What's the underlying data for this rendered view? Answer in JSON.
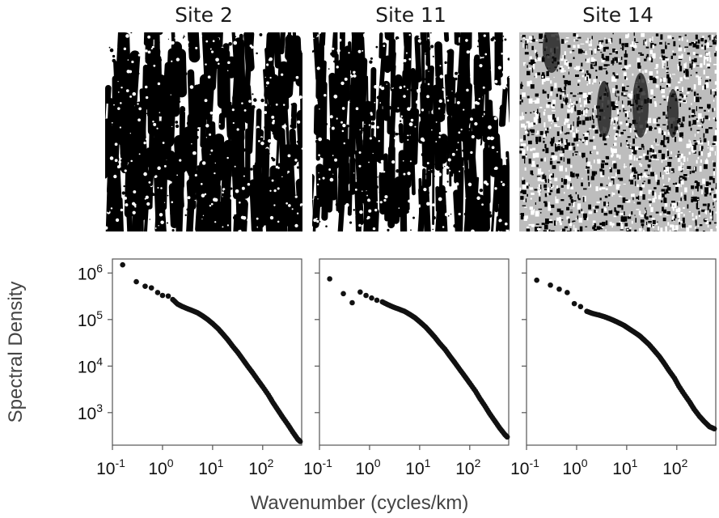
{
  "figure": {
    "xlabel": "Wavenumber (cycles/km)",
    "ylabel": "Spectral Density"
  },
  "panels": [
    {
      "title": "Site 2",
      "texture": "dark-streaks"
    },
    {
      "title": "Site 11",
      "texture": "mixed-streaks"
    },
    {
      "title": "Site 14",
      "texture": "speckled"
    }
  ],
  "chart_data": [
    {
      "type": "scatter",
      "title": "Site 2",
      "xscale": "log",
      "yscale": "log",
      "xlim": [
        0.1,
        600
      ],
      "ylim": [
        200,
        2000000
      ],
      "xticks": [
        "10-1",
        "100",
        "101",
        "102"
      ],
      "yticks": [
        "106",
        "105",
        "104",
        "103"
      ],
      "points": [
        [
          0.16,
          1500000
        ],
        [
          0.3,
          650000
        ],
        [
          0.45,
          520000
        ],
        [
          0.6,
          480000
        ],
        [
          0.8,
          380000
        ],
        [
          1.0,
          330000
        ],
        [
          1.3,
          320000
        ],
        [
          1.6,
          270000
        ],
        [
          2.0,
          215000
        ],
        [
          2.5,
          190000
        ],
        [
          3.2,
          170000
        ],
        [
          4,
          155000
        ],
        [
          5,
          140000
        ],
        [
          6.3,
          120000
        ],
        [
          8,
          100000
        ],
        [
          10,
          82000
        ],
        [
          13,
          63000
        ],
        [
          16,
          49000
        ],
        [
          20,
          37000
        ],
        [
          25,
          27000
        ],
        [
          32,
          19500
        ],
        [
          40,
          14000
        ],
        [
          50,
          10000
        ],
        [
          63,
          7200
        ],
        [
          80,
          5000
        ],
        [
          100,
          3600
        ],
        [
          130,
          2400
        ],
        [
          160,
          1650
        ],
        [
          200,
          1150
        ],
        [
          250,
          800
        ],
        [
          320,
          550
        ],
        [
          400,
          380
        ],
        [
          500,
          270
        ],
        [
          560,
          240
        ]
      ]
    },
    {
      "type": "scatter",
      "title": "Site 11",
      "xscale": "log",
      "yscale": "log",
      "xlim": [
        0.1,
        600
      ],
      "ylim": [
        200,
        2000000
      ],
      "xticks": [
        "10-1",
        "100",
        "101",
        "102"
      ],
      "yticks": [],
      "points": [
        [
          0.16,
          750000
        ],
        [
          0.3,
          360000
        ],
        [
          0.45,
          230000
        ],
        [
          0.65,
          390000
        ],
        [
          0.85,
          330000
        ],
        [
          1.1,
          290000
        ],
        [
          1.4,
          260000
        ],
        [
          1.8,
          240000
        ],
        [
          2.3,
          210000
        ],
        [
          3,
          185000
        ],
        [
          4,
          165000
        ],
        [
          5,
          150000
        ],
        [
          6.3,
          130000
        ],
        [
          8,
          110000
        ],
        [
          10,
          90000
        ],
        [
          13,
          70000
        ],
        [
          16,
          55000
        ],
        [
          20,
          42000
        ],
        [
          25,
          31000
        ],
        [
          32,
          23000
        ],
        [
          40,
          16500
        ],
        [
          50,
          12000
        ],
        [
          63,
          8500
        ],
        [
          80,
          6000
        ],
        [
          100,
          4300
        ],
        [
          130,
          2900
        ],
        [
          160,
          2000
        ],
        [
          200,
          1400
        ],
        [
          250,
          950
        ],
        [
          320,
          650
        ],
        [
          400,
          460
        ],
        [
          500,
          340
        ],
        [
          560,
          300
        ]
      ]
    },
    {
      "type": "scatter",
      "title": "Site 14",
      "xscale": "log",
      "yscale": "log",
      "xlim": [
        0.1,
        600
      ],
      "ylim": [
        200,
        2000000
      ],
      "xticks": [
        "10-1",
        "100",
        "101",
        "102"
      ],
      "yticks": [],
      "points": [
        [
          0.16,
          700000
        ],
        [
          0.3,
          550000
        ],
        [
          0.45,
          450000
        ],
        [
          0.65,
          380000
        ],
        [
          0.9,
          220000
        ],
        [
          1.2,
          190000
        ],
        [
          1.6,
          150000
        ],
        [
          2.1,
          135000
        ],
        [
          2.8,
          125000
        ],
        [
          3.6,
          115000
        ],
        [
          4.5,
          105000
        ],
        [
          5.6,
          95000
        ],
        [
          7,
          85000
        ],
        [
          9,
          74000
        ],
        [
          11,
          64000
        ],
        [
          14,
          54000
        ],
        [
          18,
          45000
        ],
        [
          22,
          37000
        ],
        [
          28,
          29000
        ],
        [
          35,
          22000
        ],
        [
          45,
          16000
        ],
        [
          56,
          11500
        ],
        [
          70,
          8000
        ],
        [
          90,
          5500
        ],
        [
          110,
          3700
        ],
        [
          140,
          2500
        ],
        [
          180,
          1700
        ],
        [
          220,
          1200
        ],
        [
          280,
          850
        ],
        [
          350,
          650
        ],
        [
          450,
          500
        ],
        [
          560,
          450
        ]
      ]
    }
  ]
}
